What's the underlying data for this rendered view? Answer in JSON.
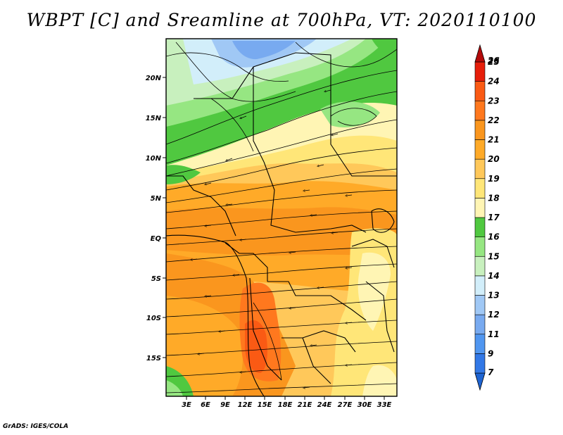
{
  "title": "WBPT [C] and Sreamline at 700hPa, VT: 2020110100",
  "credit": "GrADS: IGES/COLA",
  "map": {
    "lat_labels": [
      "20N",
      "15N",
      "10N",
      "5N",
      "EQ",
      "5S",
      "10S",
      "15S"
    ],
    "lon_labels": [
      "3E",
      "6E",
      "9E",
      "12E",
      "15E",
      "18E",
      "21E",
      "24E",
      "27E",
      "30E",
      "33E"
    ]
  },
  "colorbar": {
    "labels": [
      "7",
      "9",
      "11",
      "12",
      "13",
      "14",
      "15",
      "16",
      "17",
      "18",
      "19",
      "20",
      "21",
      "22",
      "23",
      "24",
      "25",
      "26"
    ],
    "colors": [
      "#1e64d2",
      "#3278e6",
      "#5096f0",
      "#78aaf0",
      "#a0c8f5",
      "#d2eefa",
      "#c8f0be",
      "#96e682",
      "#50c840",
      "#fff5b4",
      "#ffe678",
      "#ffc85a",
      "#ffaa28",
      "#fa961e",
      "#ff781e",
      "#fa5a14",
      "#e61e0a",
      "#b40a0a"
    ]
  }
}
